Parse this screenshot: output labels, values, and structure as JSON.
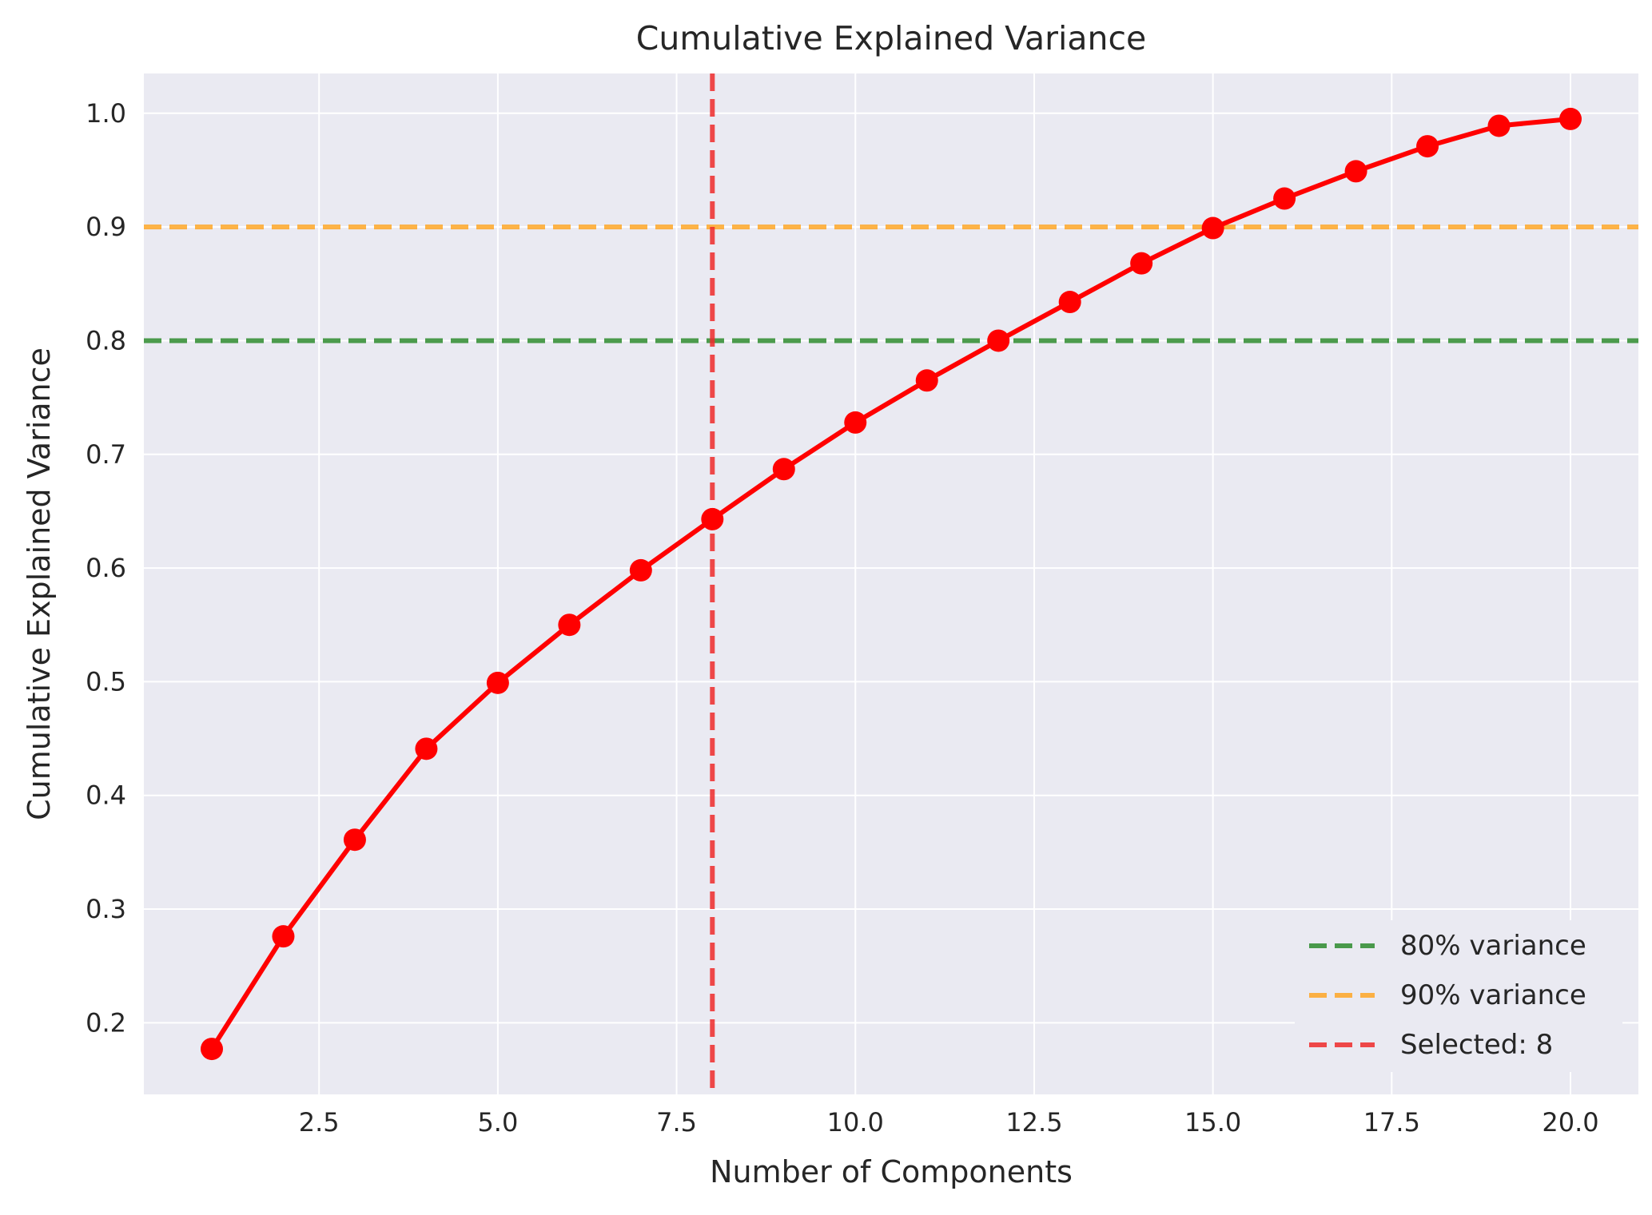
{
  "chart_data": {
    "type": "line",
    "title": "Cumulative Explained Variance",
    "xlabel": "Number of Components",
    "ylabel": "Cumulative Explained Variance",
    "xlim": [
      0.05,
      20.95
    ],
    "ylim": [
      0.137,
      1.035
    ],
    "xticks": [
      2.5,
      5.0,
      7.5,
      10.0,
      12.5,
      15.0,
      17.5,
      20.0
    ],
    "xtick_labels": [
      "2.5",
      "5.0",
      "7.5",
      "10.0",
      "12.5",
      "15.0",
      "17.5",
      "20.0"
    ],
    "yticks": [
      0.2,
      0.3,
      0.4,
      0.5,
      0.6,
      0.7,
      0.8,
      0.9,
      1.0
    ],
    "ytick_labels": [
      "0.2",
      "0.3",
      "0.4",
      "0.5",
      "0.6",
      "0.7",
      "0.8",
      "0.9",
      "1.0"
    ],
    "grid": true,
    "series": [
      {
        "color": "#ff0000",
        "x": [
          1,
          2,
          3,
          4,
          5,
          6,
          7,
          8,
          9,
          10,
          11,
          12,
          13,
          14,
          15,
          16,
          17,
          18,
          19,
          20
        ],
        "values": [
          0.177,
          0.276,
          0.361,
          0.441,
          0.499,
          0.55,
          0.598,
          0.643,
          0.687,
          0.728,
          0.765,
          0.8,
          0.834,
          0.868,
          0.899,
          0.925,
          0.949,
          0.971,
          0.989,
          0.995
        ]
      }
    ],
    "reference_lines": [
      {
        "orientation": "horizontal",
        "value": 0.8,
        "color": "#2e8b2e",
        "label": "80% variance"
      },
      {
        "orientation": "horizontal",
        "value": 0.9,
        "color": "#ffa726",
        "label": "90% variance"
      },
      {
        "orientation": "vertical",
        "value": 8,
        "color": "#ef2b2b",
        "label": "Selected: 8"
      }
    ],
    "legend_position": "lower-right",
    "colors": {
      "plot_background": "#eaeaf2",
      "grid": "#ffffff",
      "text": "#262626"
    }
  }
}
